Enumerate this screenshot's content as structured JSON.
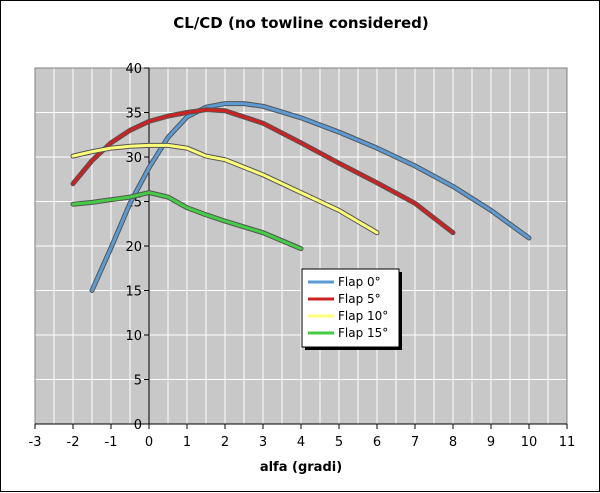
{
  "chart_data": {
    "type": "line",
    "title": "CL/CD (no towline considered)",
    "xlabel": "alfa (gradi)",
    "ylabel": "",
    "xlim": [
      -3,
      11
    ],
    "ylim": [
      0,
      40
    ],
    "x_ticks": [
      "-3",
      "-2",
      "-1",
      "0",
      "1",
      "2",
      "3",
      "4",
      "5",
      "6",
      "7",
      "8",
      "9",
      "10",
      "11"
    ],
    "y_ticks": [
      "0",
      "5",
      "10",
      "15",
      "20",
      "25",
      "30",
      "35",
      "40"
    ],
    "grid": true,
    "legend_position": "center",
    "series": [
      {
        "name": "Flap 0°",
        "color": "#5b9bd5",
        "x": [
          -1.5,
          -1,
          -0.5,
          0,
          0.5,
          1,
          1.5,
          2,
          2.5,
          3,
          4,
          5,
          6,
          7,
          8,
          9,
          10
        ],
        "y": [
          15,
          19.8,
          24.8,
          28.8,
          32.2,
          34.5,
          35.6,
          36.0,
          36.0,
          35.7,
          34.4,
          32.8,
          31.0,
          29.0,
          26.7,
          24.0,
          20.9
        ]
      },
      {
        "name": "Flap 5°",
        "color": "#cc2222",
        "x": [
          -2,
          -1.5,
          -1,
          -0.5,
          0,
          0.5,
          1,
          1.5,
          2,
          3,
          4,
          5,
          6,
          7,
          8
        ],
        "y": [
          27.0,
          29.6,
          31.6,
          33.0,
          34.0,
          34.6,
          35.0,
          35.3,
          35.2,
          33.8,
          31.6,
          29.3,
          27.1,
          24.8,
          21.5
        ]
      },
      {
        "name": "Flap 10°",
        "color": "#ffff7a",
        "x": [
          -2,
          -1.5,
          -1,
          -0.5,
          0,
          0.5,
          1,
          1.5,
          2,
          3,
          4,
          5,
          6
        ],
        "y": [
          30.1,
          30.6,
          31.0,
          31.2,
          31.3,
          31.3,
          31.0,
          30.1,
          29.7,
          28.0,
          26.0,
          24.0,
          21.5
        ]
      },
      {
        "name": "Flap 15°",
        "color": "#44cc44",
        "x": [
          -2,
          -1.5,
          -1,
          -0.5,
          0,
          0.5,
          1,
          1.5,
          2,
          3,
          4
        ],
        "y": [
          24.7,
          24.9,
          25.2,
          25.5,
          26.0,
          25.5,
          24.3,
          23.5,
          22.8,
          21.5,
          19.7
        ]
      }
    ]
  }
}
